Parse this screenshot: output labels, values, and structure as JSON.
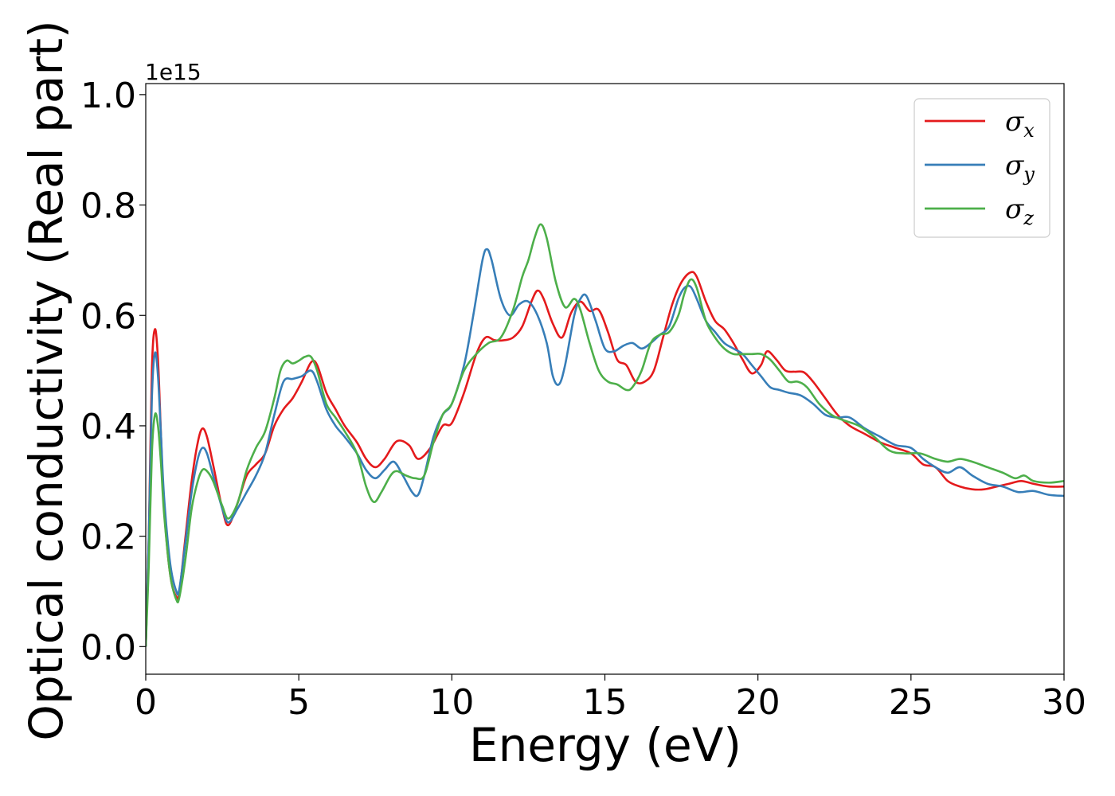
{
  "chart_data": {
    "type": "line",
    "title": "",
    "xlabel": "Energy (eV)",
    "ylabel": "Optical conductivity (Real part)",
    "y_offset_label": "1e15",
    "xlim": [
      0,
      30
    ],
    "ylim": [
      -0.05,
      1.02
    ],
    "xticks": [
      0,
      5,
      10,
      15,
      20,
      25,
      30
    ],
    "xtick_labels": [
      "0",
      "5",
      "10",
      "15",
      "20",
      "25",
      "30"
    ],
    "yticks": [
      0.0,
      0.2,
      0.4,
      0.6,
      0.8,
      1.0
    ],
    "ytick_labels": [
      "0.0",
      "0.2",
      "0.4",
      "0.6",
      "0.8",
      "1.0"
    ],
    "grid": false,
    "legend_position": "top-right",
    "series": [
      {
        "name": "σx",
        "symbol": "σ",
        "subscript": "x",
        "color": "#e41a1c",
        "x": [
          0,
          0.1,
          0.2,
          0.3,
          0.4,
          0.5,
          0.6,
          0.8,
          1.0,
          1.1,
          1.3,
          1.5,
          1.7,
          1.85,
          2.0,
          2.2,
          2.5,
          2.7,
          3.0,
          3.3,
          3.6,
          3.9,
          4.2,
          4.5,
          4.8,
          5.1,
          5.4,
          5.6,
          5.9,
          6.2,
          6.5,
          6.9,
          7.2,
          7.5,
          7.8,
          8.2,
          8.6,
          8.9,
          9.3,
          9.7,
          10.0,
          10.4,
          10.8,
          11.1,
          11.4,
          11.7,
          12.0,
          12.3,
          12.6,
          12.8,
          13.0,
          13.3,
          13.6,
          13.9,
          14.2,
          14.5,
          14.8,
          15.1,
          15.4,
          15.7,
          16.0,
          16.3,
          16.6,
          16.9,
          17.2,
          17.5,
          17.8,
          18.0,
          18.3,
          18.6,
          18.9,
          19.2,
          19.5,
          19.8,
          20.1,
          20.3,
          20.6,
          20.9,
          21.2,
          21.5,
          21.8,
          22.2,
          22.6,
          23.0,
          23.5,
          24.0,
          24.5,
          25.0,
          25.4,
          25.8,
          26.2,
          26.6,
          27.0,
          27.4,
          27.8,
          28.2,
          28.6,
          29.0,
          29.5,
          30.0
        ],
        "y": [
          0.0,
          0.2,
          0.5,
          0.575,
          0.52,
          0.38,
          0.25,
          0.13,
          0.09,
          0.1,
          0.2,
          0.3,
          0.37,
          0.395,
          0.38,
          0.33,
          0.25,
          0.22,
          0.26,
          0.31,
          0.33,
          0.35,
          0.4,
          0.43,
          0.45,
          0.48,
          0.515,
          0.51,
          0.46,
          0.43,
          0.4,
          0.37,
          0.34,
          0.325,
          0.34,
          0.372,
          0.365,
          0.34,
          0.36,
          0.4,
          0.405,
          0.46,
          0.53,
          0.56,
          0.555,
          0.555,
          0.56,
          0.58,
          0.625,
          0.645,
          0.63,
          0.585,
          0.56,
          0.605,
          0.625,
          0.608,
          0.61,
          0.57,
          0.52,
          0.51,
          0.48,
          0.48,
          0.5,
          0.56,
          0.62,
          0.66,
          0.678,
          0.67,
          0.625,
          0.59,
          0.575,
          0.55,
          0.52,
          0.495,
          0.51,
          0.535,
          0.52,
          0.5,
          0.498,
          0.497,
          0.48,
          0.45,
          0.42,
          0.4,
          0.385,
          0.37,
          0.36,
          0.35,
          0.33,
          0.325,
          0.3,
          0.29,
          0.285,
          0.285,
          0.29,
          0.295,
          0.3,
          0.295,
          0.29,
          0.29
        ]
      },
      {
        "name": "σy",
        "symbol": "σ",
        "subscript": "y",
        "color": "#377eb8",
        "x": [
          0,
          0.1,
          0.2,
          0.3,
          0.4,
          0.5,
          0.6,
          0.8,
          1.0,
          1.1,
          1.3,
          1.5,
          1.7,
          1.85,
          2.0,
          2.2,
          2.5,
          2.7,
          3.0,
          3.3,
          3.6,
          3.9,
          4.2,
          4.5,
          4.8,
          5.1,
          5.4,
          5.6,
          5.9,
          6.2,
          6.5,
          6.9,
          7.2,
          7.5,
          7.8,
          8.1,
          8.4,
          8.7,
          8.9,
          9.1,
          9.4,
          9.7,
          10.0,
          10.4,
          10.7,
          11.0,
          11.15,
          11.3,
          11.6,
          11.9,
          12.2,
          12.5,
          12.8,
          13.1,
          13.3,
          13.5,
          13.7,
          14.0,
          14.2,
          14.4,
          14.7,
          15.0,
          15.3,
          15.6,
          15.9,
          16.2,
          16.5,
          16.8,
          17.1,
          17.4,
          17.6,
          17.8,
          18.0,
          18.3,
          18.6,
          18.9,
          19.2,
          19.5,
          19.8,
          20.1,
          20.4,
          20.7,
          21.0,
          21.4,
          21.8,
          22.2,
          22.6,
          23.0,
          23.5,
          24.0,
          24.5,
          25.0,
          25.4,
          25.8,
          26.2,
          26.6,
          27.0,
          27.5,
          28.0,
          28.5,
          29.0,
          29.5,
          30.0
        ],
        "y": [
          0.0,
          0.2,
          0.45,
          0.532,
          0.49,
          0.38,
          0.27,
          0.15,
          0.1,
          0.105,
          0.19,
          0.28,
          0.34,
          0.36,
          0.35,
          0.31,
          0.25,
          0.225,
          0.25,
          0.28,
          0.31,
          0.35,
          0.42,
          0.48,
          0.485,
          0.49,
          0.5,
          0.48,
          0.43,
          0.4,
          0.38,
          0.35,
          0.32,
          0.305,
          0.32,
          0.335,
          0.31,
          0.28,
          0.275,
          0.31,
          0.38,
          0.42,
          0.44,
          0.51,
          0.6,
          0.7,
          0.72,
          0.7,
          0.63,
          0.6,
          0.62,
          0.625,
          0.6,
          0.55,
          0.49,
          0.475,
          0.51,
          0.6,
          0.63,
          0.635,
          0.59,
          0.54,
          0.535,
          0.545,
          0.55,
          0.54,
          0.55,
          0.565,
          0.58,
          0.63,
          0.65,
          0.652,
          0.63,
          0.59,
          0.57,
          0.55,
          0.54,
          0.53,
          0.51,
          0.49,
          0.47,
          0.465,
          0.46,
          0.455,
          0.44,
          0.42,
          0.415,
          0.415,
          0.395,
          0.38,
          0.365,
          0.36,
          0.34,
          0.325,
          0.315,
          0.325,
          0.31,
          0.295,
          0.29,
          0.28,
          0.282,
          0.275,
          0.273
        ]
      },
      {
        "name": "σz",
        "symbol": "σ",
        "subscript": "z",
        "color": "#4daf4a",
        "x": [
          0,
          0.1,
          0.2,
          0.3,
          0.4,
          0.5,
          0.6,
          0.8,
          1.0,
          1.1,
          1.3,
          1.5,
          1.7,
          1.85,
          2.0,
          2.2,
          2.5,
          2.7,
          3.0,
          3.3,
          3.6,
          3.9,
          4.2,
          4.4,
          4.6,
          4.8,
          5.0,
          5.2,
          5.4,
          5.6,
          5.9,
          6.2,
          6.5,
          6.9,
          7.2,
          7.45,
          7.7,
          8.0,
          8.2,
          8.5,
          8.8,
          9.1,
          9.4,
          9.7,
          10.0,
          10.4,
          10.8,
          11.2,
          11.6,
          12.0,
          12.3,
          12.5,
          12.7,
          12.9,
          13.1,
          13.4,
          13.7,
          14.0,
          14.2,
          14.5,
          14.8,
          15.1,
          15.4,
          15.7,
          15.9,
          16.2,
          16.5,
          16.8,
          17.1,
          17.4,
          17.6,
          17.8,
          18.0,
          18.3,
          18.6,
          18.9,
          19.2,
          19.5,
          19.8,
          20.1,
          20.4,
          20.7,
          21.0,
          21.3,
          21.6,
          22.0,
          22.4,
          22.8,
          23.3,
          23.8,
          24.3,
          24.8,
          25.3,
          25.8,
          26.2,
          26.6,
          27.0,
          27.5,
          28.0,
          28.4,
          28.7,
          29.0,
          29.5,
          30.0
        ],
        "y": [
          0.0,
          0.15,
          0.35,
          0.42,
          0.4,
          0.33,
          0.24,
          0.13,
          0.085,
          0.09,
          0.16,
          0.25,
          0.3,
          0.32,
          0.318,
          0.3,
          0.255,
          0.232,
          0.26,
          0.32,
          0.36,
          0.39,
          0.45,
          0.5,
          0.518,
          0.513,
          0.518,
          0.525,
          0.525,
          0.5,
          0.44,
          0.415,
          0.39,
          0.35,
          0.29,
          0.262,
          0.28,
          0.31,
          0.318,
          0.31,
          0.305,
          0.31,
          0.37,
          0.42,
          0.44,
          0.5,
          0.53,
          0.55,
          0.56,
          0.61,
          0.67,
          0.7,
          0.74,
          0.765,
          0.74,
          0.66,
          0.615,
          0.63,
          0.61,
          0.55,
          0.5,
          0.48,
          0.475,
          0.465,
          0.47,
          0.5,
          0.55,
          0.565,
          0.57,
          0.6,
          0.64,
          0.665,
          0.65,
          0.59,
          0.56,
          0.54,
          0.53,
          0.53,
          0.53,
          0.53,
          0.52,
          0.5,
          0.48,
          0.48,
          0.47,
          0.44,
          0.42,
          0.41,
          0.4,
          0.38,
          0.355,
          0.35,
          0.35,
          0.34,
          0.335,
          0.34,
          0.335,
          0.325,
          0.315,
          0.305,
          0.31,
          0.3,
          0.297,
          0.3
        ]
      }
    ]
  }
}
